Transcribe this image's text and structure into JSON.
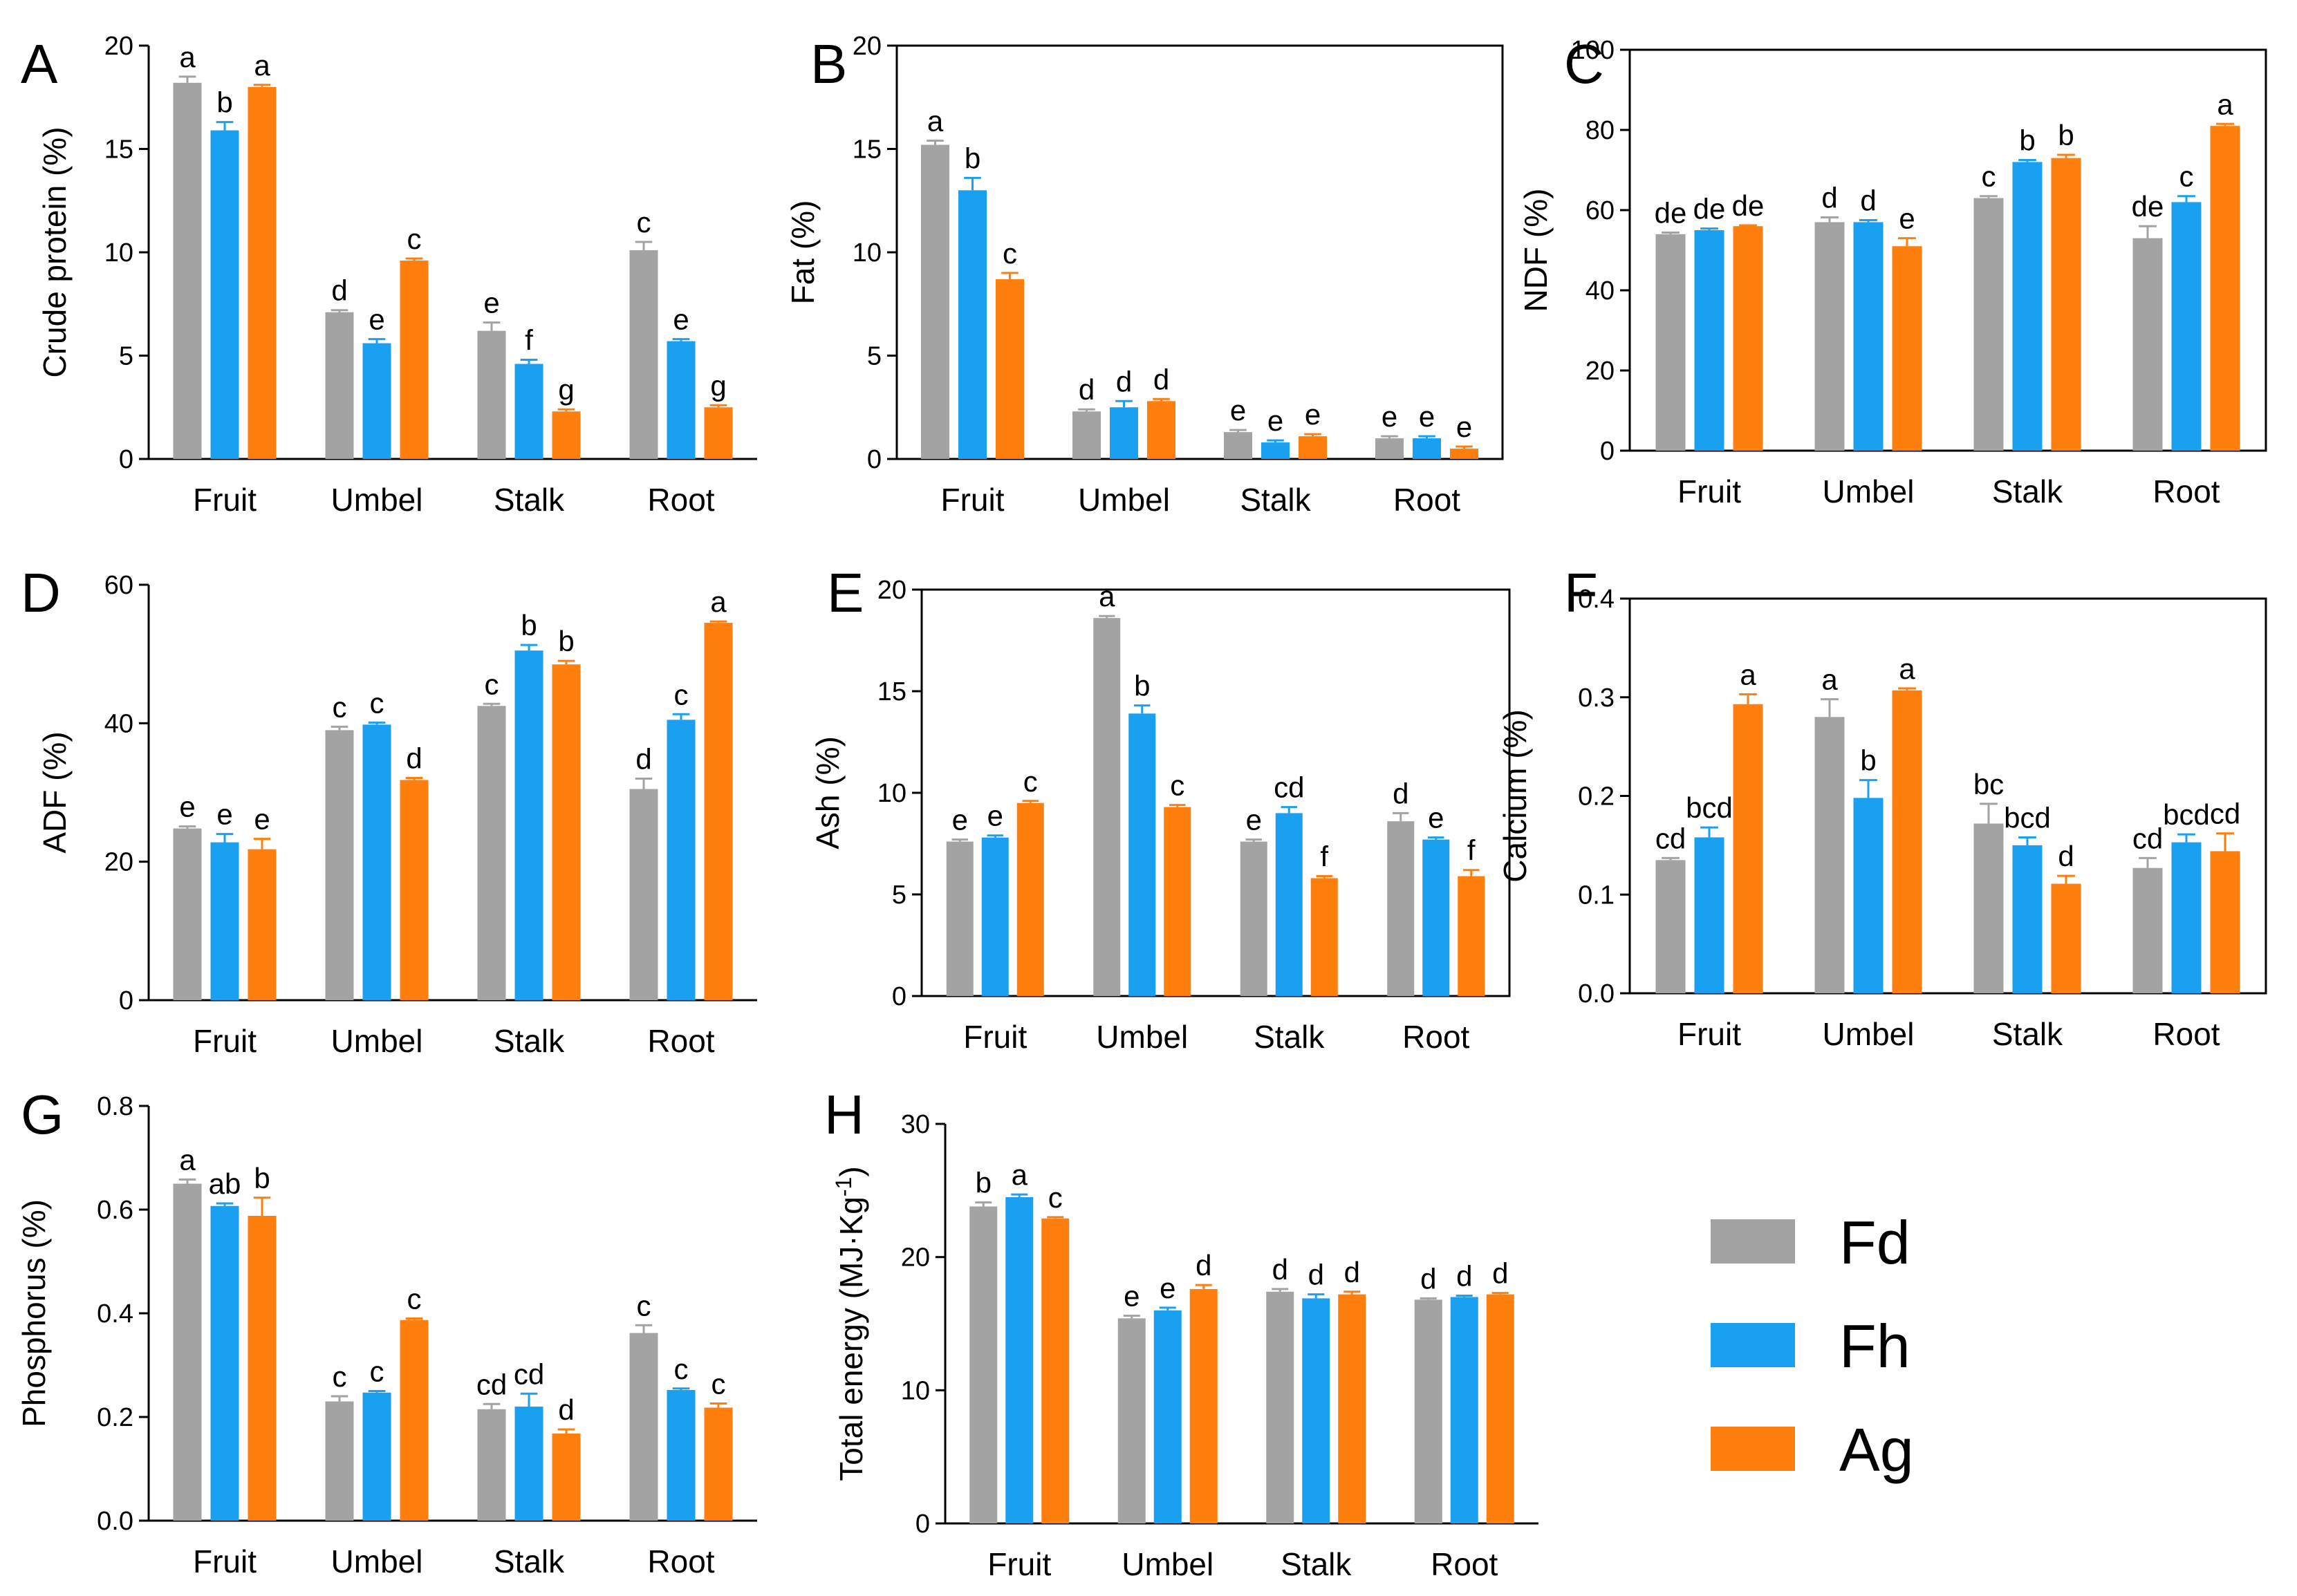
{
  "series": [
    {
      "name": "Fd",
      "color": "#a3a3a3"
    },
    {
      "name": "Fh",
      "color": "#1aa0f0"
    },
    {
      "name": "Ag",
      "color": "#ff7f0e"
    }
  ],
  "legend": {
    "labels": [
      "Fd",
      "Fh",
      "Ag"
    ]
  },
  "chart_data": [
    {
      "panel": "A",
      "type": "bar",
      "title": "",
      "xlabel": "",
      "ylabel": "Crude protein (%)",
      "categories": [
        "Fruit",
        "Umbel",
        "Stalk",
        "Root"
      ],
      "ylim": [
        0,
        20
      ],
      "yticks": [
        "0",
        "5",
        "10",
        "15",
        "20"
      ],
      "series": [
        {
          "name": "Fd",
          "values": [
            18.2,
            7.1,
            6.2,
            10.1
          ],
          "errors": [
            0.3,
            0.1,
            0.4,
            0.4
          ],
          "letters": [
            "a",
            "d",
            "e",
            "c"
          ]
        },
        {
          "name": "Fh",
          "values": [
            15.9,
            5.6,
            4.6,
            5.7
          ],
          "errors": [
            0.4,
            0.2,
            0.2,
            0.1
          ],
          "letters": [
            "b",
            "e",
            "f",
            "e"
          ]
        },
        {
          "name": "Ag",
          "values": [
            18.0,
            9.6,
            2.3,
            2.5
          ],
          "errors": [
            0.1,
            0.1,
            0.1,
            0.1
          ],
          "letters": [
            "a",
            "c",
            "g",
            "g"
          ]
        }
      ]
    },
    {
      "panel": "B",
      "type": "bar",
      "title": "",
      "xlabel": "",
      "ylabel": "Fat (%)",
      "categories": [
        "Fruit",
        "Umbel",
        "Stalk",
        "Root"
      ],
      "ylim": [
        0,
        20
      ],
      "yticks": [
        "0",
        "5",
        "10",
        "15",
        "20"
      ],
      "series": [
        {
          "name": "Fd",
          "values": [
            15.2,
            2.3,
            1.3,
            1.0
          ],
          "errors": [
            0.2,
            0.1,
            0.1,
            0.1
          ],
          "letters": [
            "a",
            "d",
            "e",
            "e"
          ]
        },
        {
          "name": "Fh",
          "values": [
            13.0,
            2.5,
            0.8,
            1.0
          ],
          "errors": [
            0.6,
            0.3,
            0.1,
            0.1
          ],
          "letters": [
            "b",
            "d",
            "e",
            "e"
          ]
        },
        {
          "name": "Ag",
          "values": [
            8.7,
            2.8,
            1.1,
            0.5
          ],
          "errors": [
            0.3,
            0.1,
            0.1,
            0.1
          ],
          "letters": [
            "c",
            "d",
            "e",
            "e"
          ]
        }
      ]
    },
    {
      "panel": "C",
      "type": "bar",
      "title": "",
      "xlabel": "",
      "ylabel": "NDF (%)",
      "categories": [
        "Fruit",
        "Umbel",
        "Stalk",
        "Root"
      ],
      "ylim": [
        0,
        100
      ],
      "yticks": [
        "0",
        "20",
        "40",
        "60",
        "80",
        "100"
      ],
      "series": [
        {
          "name": "Fd",
          "values": [
            54,
            57,
            63,
            53
          ],
          "errors": [
            0.4,
            1.2,
            0.5,
            3.0
          ],
          "letters": [
            "de",
            "d",
            "c",
            "de"
          ]
        },
        {
          "name": "Fh",
          "values": [
            55,
            57,
            72,
            62
          ],
          "errors": [
            0.4,
            0.5,
            0.5,
            1.5
          ],
          "letters": [
            "de",
            "d",
            "b",
            "c"
          ]
        },
        {
          "name": "Ag",
          "values": [
            56,
            51,
            73,
            81
          ],
          "errors": [
            0.2,
            2.0,
            0.8,
            0.5
          ],
          "letters": [
            "de",
            "e",
            "b",
            "a"
          ]
        }
      ]
    },
    {
      "panel": "D",
      "type": "bar",
      "title": "",
      "xlabel": "",
      "ylabel": "ADF (%)",
      "categories": [
        "Fruit",
        "Umbel",
        "Stalk",
        "Root"
      ],
      "ylim": [
        0,
        60
      ],
      "yticks": [
        "0",
        "20",
        "40",
        "60"
      ],
      "series": [
        {
          "name": "Fd",
          "values": [
            24.8,
            39.0,
            42.5,
            30.5
          ],
          "errors": [
            0.3,
            0.5,
            0.3,
            1.5
          ],
          "letters": [
            "e",
            "c",
            "c",
            "d"
          ]
        },
        {
          "name": "Fh",
          "values": [
            22.8,
            39.8,
            50.5,
            40.5
          ],
          "errors": [
            1.2,
            0.3,
            0.8,
            0.8
          ],
          "letters": [
            "e",
            "c",
            "b",
            "c"
          ]
        },
        {
          "name": "Ag",
          "values": [
            21.8,
            31.8,
            48.5,
            54.5
          ],
          "errors": [
            1.5,
            0.3,
            0.5,
            0.2
          ],
          "letters": [
            "e",
            "d",
            "b",
            "a"
          ]
        }
      ]
    },
    {
      "panel": "E",
      "type": "bar",
      "title": "",
      "xlabel": "",
      "ylabel": "Ash (%)",
      "categories": [
        "Fruit",
        "Umbel",
        "Stalk",
        "Root"
      ],
      "ylim": [
        0,
        20
      ],
      "yticks": [
        "0",
        "5",
        "10",
        "15",
        "20"
      ],
      "series": [
        {
          "name": "Fd",
          "values": [
            7.6,
            18.6,
            7.6,
            8.6
          ],
          "errors": [
            0.1,
            0.1,
            0.1,
            0.4
          ],
          "letters": [
            "e",
            "a",
            "e",
            "d"
          ]
        },
        {
          "name": "Fh",
          "values": [
            7.8,
            13.9,
            9.0,
            7.7
          ],
          "errors": [
            0.1,
            0.4,
            0.3,
            0.1
          ],
          "letters": [
            "e",
            "b",
            "cd",
            "e"
          ]
        },
        {
          "name": "Ag",
          "values": [
            9.5,
            9.3,
            5.8,
            5.9
          ],
          "errors": [
            0.1,
            0.1,
            0.1,
            0.3
          ],
          "letters": [
            "c",
            "c",
            "f",
            "f"
          ]
        }
      ]
    },
    {
      "panel": "F",
      "type": "bar",
      "title": "",
      "xlabel": "",
      "ylabel": "Calcium (%)",
      "categories": [
        "Fruit",
        "Umbel",
        "Stalk",
        "Root"
      ],
      "ylim": [
        0,
        0.4
      ],
      "yticks": [
        "0.0",
        "0.1",
        "0.2",
        "0.3",
        "0.4"
      ],
      "series": [
        {
          "name": "Fd",
          "values": [
            0.135,
            0.28,
            0.172,
            0.127
          ],
          "errors": [
            0.002,
            0.018,
            0.02,
            0.01
          ],
          "letters": [
            "cd",
            "a",
            "bc",
            "cd"
          ]
        },
        {
          "name": "Fh",
          "values": [
            0.158,
            0.198,
            0.15,
            0.153
          ],
          "errors": [
            0.01,
            0.018,
            0.008,
            0.008
          ],
          "letters": [
            "bcd",
            "b",
            "bcd",
            "bcd"
          ]
        },
        {
          "name": "Ag",
          "values": [
            0.293,
            0.307,
            0.111,
            0.144
          ],
          "errors": [
            0.01,
            0.002,
            0.008,
            0.018
          ],
          "letters": [
            "a",
            "a",
            "d",
            "cd"
          ]
        }
      ]
    },
    {
      "panel": "G",
      "type": "bar",
      "title": "",
      "xlabel": "",
      "ylabel": "Phosphorus (%)",
      "categories": [
        "Fruit",
        "Umbel",
        "Stalk",
        "Root"
      ],
      "ylim": [
        0,
        0.8
      ],
      "yticks": [
        "0.0",
        "0.2",
        "0.4",
        "0.6",
        "0.8"
      ],
      "series": [
        {
          "name": "Fd",
          "values": [
            0.65,
            0.23,
            0.215,
            0.362
          ],
          "errors": [
            0.008,
            0.01,
            0.01,
            0.015
          ],
          "letters": [
            "a",
            "c",
            "cd",
            "c"
          ]
        },
        {
          "name": "Fh",
          "values": [
            0.607,
            0.247,
            0.22,
            0.252
          ],
          "errors": [
            0.005,
            0.003,
            0.025,
            0.003
          ],
          "letters": [
            "ab",
            "c",
            "cd",
            "c"
          ]
        },
        {
          "name": "Ag",
          "values": [
            0.588,
            0.387,
            0.168,
            0.218
          ],
          "errors": [
            0.035,
            0.003,
            0.008,
            0.008
          ],
          "letters": [
            "b",
            "c",
            "d",
            "c"
          ]
        }
      ]
    },
    {
      "panel": "H",
      "type": "bar",
      "title": "",
      "xlabel": "",
      "ylabel": "Total energy (MJ·Kg",
      "ylabel_sup": "-1",
      "ylabel_end": ")",
      "categories": [
        "Fruit",
        "Umbel",
        "Stalk",
        "Root"
      ],
      "ylim": [
        0,
        30
      ],
      "yticks": [
        "0",
        "10",
        "20",
        "30"
      ],
      "series": [
        {
          "name": "Fd",
          "values": [
            23.8,
            15.4,
            17.4,
            16.8
          ],
          "errors": [
            0.3,
            0.2,
            0.2,
            0.1
          ],
          "letters": [
            "b",
            "e",
            "d",
            "d"
          ]
        },
        {
          "name": "Fh",
          "values": [
            24.5,
            16.0,
            16.9,
            17.0
          ],
          "errors": [
            0.2,
            0.2,
            0.3,
            0.1
          ],
          "letters": [
            "a",
            "e",
            "d",
            "d"
          ]
        },
        {
          "name": "Ag",
          "values": [
            22.9,
            17.6,
            17.2,
            17.2
          ],
          "errors": [
            0.1,
            0.3,
            0.2,
            0.1
          ],
          "letters": [
            "c",
            "d",
            "d",
            "d"
          ]
        }
      ]
    }
  ]
}
